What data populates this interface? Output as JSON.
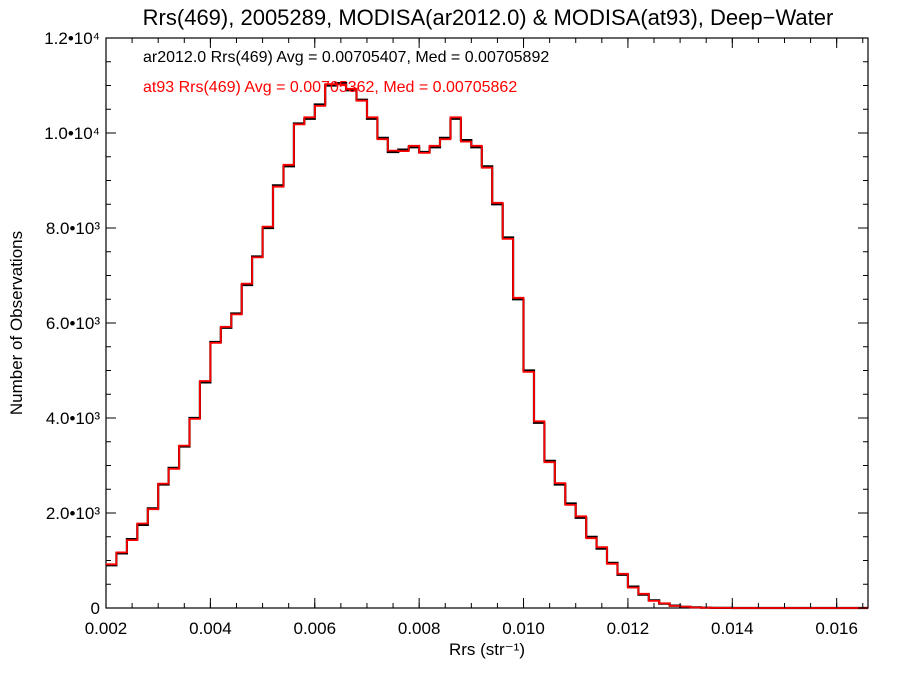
{
  "chart_data": {
    "type": "line",
    "title": "Rrs(469), 2005289, MODISA(ar2012.0) & MODISA(at93), Deep−Water",
    "xlabel": "Rrs (str⁻¹)",
    "ylabel": "Number of Observations",
    "xlim": [
      0.002,
      0.0166
    ],
    "ylim": [
      0,
      12000
    ],
    "x_ticks": [
      {
        "value": 0.002,
        "label": "0.002"
      },
      {
        "value": 0.004,
        "label": "0.004"
      },
      {
        "value": 0.006,
        "label": "0.006"
      },
      {
        "value": 0.008,
        "label": "0.008"
      },
      {
        "value": 0.01,
        "label": "0.010"
      },
      {
        "value": 0.012,
        "label": "0.012"
      },
      {
        "value": 0.014,
        "label": "0.014"
      },
      {
        "value": 0.016,
        "label": "0.016"
      }
    ],
    "y_ticks": [
      {
        "value": 0,
        "label": "0"
      },
      {
        "value": 2000,
        "label": "2.0•10³"
      },
      {
        "value": 4000,
        "label": "4.0•10³"
      },
      {
        "value": 6000,
        "label": "6.0•10³"
      },
      {
        "value": 8000,
        "label": "8.0•10³"
      },
      {
        "value": 10000,
        "label": "1.0•10⁴"
      },
      {
        "value": 12000,
        "label": "1.2•10⁴"
      }
    ],
    "legend": [
      {
        "text": "ar2012.0 Rrs(469) Avg = 0.00705407, Med = 0.00705892",
        "color": "#000000"
      },
      {
        "text": "at93 Rrs(469) Avg = 0.00705362, Med = 0.00705862",
        "color": "#ff0000"
      }
    ],
    "legend_placement": "top-left",
    "grid": false,
    "series": [
      {
        "color": "#000000",
        "x": [
          0.002,
          0.0022,
          0.0024,
          0.0026,
          0.0028,
          0.003,
          0.0032,
          0.0034,
          0.0036,
          0.0038,
          0.004,
          0.0042,
          0.0044,
          0.0046,
          0.0048,
          0.005,
          0.0052,
          0.0054,
          0.0056,
          0.0058,
          0.006,
          0.0062,
          0.0064,
          0.0066,
          0.0068,
          0.007,
          0.0072,
          0.0074,
          0.0076,
          0.0078,
          0.008,
          0.0082,
          0.0084,
          0.0086,
          0.0088,
          0.009,
          0.0092,
          0.0094,
          0.0096,
          0.0098,
          0.01,
          0.0102,
          0.0104,
          0.0106,
          0.0108,
          0.011,
          0.0112,
          0.0114,
          0.0116,
          0.0118,
          0.012,
          0.0122,
          0.0124,
          0.0126,
          0.0128,
          0.013,
          0.0132,
          0.0134,
          0.0136,
          0.0138,
          0.014,
          0.0145,
          0.015,
          0.0155,
          0.016,
          0.0166
        ],
        "y": [
          900,
          1150,
          1450,
          1750,
          2100,
          2600,
          2950,
          3400,
          4000,
          4750,
          5600,
          5900,
          6200,
          6800,
          7400,
          8000,
          8900,
          9300,
          10200,
          10300,
          10600,
          11000,
          11050,
          10900,
          10700,
          10300,
          9900,
          9600,
          9650,
          9700,
          9600,
          9700,
          9900,
          10300,
          9850,
          9700,
          9300,
          8500,
          7800,
          6500,
          5000,
          3900,
          3100,
          2600,
          2200,
          1900,
          1500,
          1250,
          950,
          700,
          450,
          280,
          160,
          90,
          50,
          25,
          12,
          6,
          3,
          2,
          1,
          0,
          0,
          0,
          0,
          0
        ]
      },
      {
        "color": "#ff0000",
        "x": [
          0.002,
          0.0022,
          0.0024,
          0.0026,
          0.0028,
          0.003,
          0.0032,
          0.0034,
          0.0036,
          0.0038,
          0.004,
          0.0042,
          0.0044,
          0.0046,
          0.0048,
          0.005,
          0.0052,
          0.0054,
          0.0056,
          0.0058,
          0.006,
          0.0062,
          0.0064,
          0.0066,
          0.0068,
          0.007,
          0.0072,
          0.0074,
          0.0076,
          0.0078,
          0.008,
          0.0082,
          0.0084,
          0.0086,
          0.0088,
          0.009,
          0.0092,
          0.0094,
          0.0096,
          0.0098,
          0.01,
          0.0102,
          0.0104,
          0.0106,
          0.0108,
          0.011,
          0.0112,
          0.0114,
          0.0116,
          0.0118,
          0.012,
          0.0122,
          0.0124,
          0.0126,
          0.0128,
          0.013,
          0.0132,
          0.0134,
          0.0136,
          0.0138,
          0.014,
          0.0145,
          0.015,
          0.0155,
          0.016,
          0.0166
        ],
        "y": [
          920,
          1170,
          1430,
          1780,
          2080,
          2620,
          2930,
          3420,
          3980,
          4780,
          5580,
          5920,
          6180,
          6830,
          7380,
          8030,
          8870,
          9330,
          10180,
          10330,
          10570,
          11030,
          11020,
          10930,
          10680,
          10330,
          9870,
          9630,
          9620,
          9730,
          9580,
          9730,
          9870,
          10330,
          9820,
          9730,
          9270,
          8530,
          7770,
          6530,
          4970,
          3930,
          3070,
          2630,
          2170,
          1930,
          1470,
          1280,
          930,
          720,
          430,
          300,
          150,
          100,
          45,
          30,
          10,
          7,
          2,
          3,
          1,
          0,
          0,
          0,
          0,
          0
        ]
      }
    ]
  }
}
